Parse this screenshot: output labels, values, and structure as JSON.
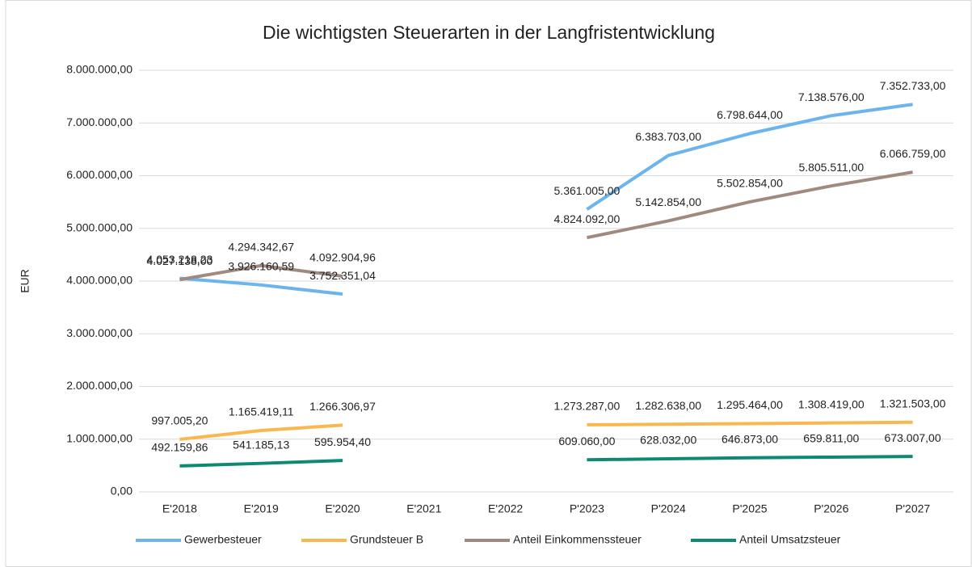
{
  "chart_data": {
    "type": "line",
    "title": "Die wichtigsten Steuerarten in der Langfristentwicklung",
    "y_label": "EUR",
    "categories": [
      "E'2018",
      "E'2019",
      "E'2020",
      "E'2021",
      "E'2022",
      "P'2023",
      "P'2024",
      "P'2025",
      "P'2026",
      "P'2027"
    ],
    "series": [
      {
        "name": "Gewerbesteuer",
        "color": "#6cb4ee",
        "values": [
          4053218.23,
          3926160.59,
          3752351.04,
          null,
          null,
          5361005,
          6383703,
          6798644,
          7138576,
          7352733
        ],
        "value_labels": [
          "4.053.218,23",
          "3.926.160,59",
          "3.752.351,04",
          null,
          null,
          "5.361.005,00",
          "6.383.703,00",
          "6.798.644,00",
          "7.138.576,00",
          "7.352.733,00"
        ]
      },
      {
        "name": "Grundsteuer B",
        "color": "#f9b74e",
        "values": [
          997005.2,
          1165419.11,
          1266306.97,
          null,
          null,
          1273287,
          1282638,
          1295464,
          1308419,
          1321503
        ],
        "value_labels": [
          "997.005,20",
          "1.165.419,11",
          "1.266.306,97",
          null,
          null,
          "1.273.287,00",
          "1.282.638,00",
          "1.295.464,00",
          "1.308.419,00",
          "1.321.503,00"
        ]
      },
      {
        "name": "Anteil Einkommenssteuer",
        "color": "#a08a80",
        "values": [
          4027138.0,
          4294342.67,
          4092904.96,
          null,
          null,
          4824092,
          5142854,
          5502854,
          5805511,
          6066759
        ],
        "value_labels": [
          "4.027.138,00",
          "4.294.342,67",
          "4.092.904,96",
          null,
          null,
          "4.824.092,00",
          "5.142.854,00",
          "5.502.854,00",
          "5.805.511,00",
          "6.066.759,00"
        ]
      },
      {
        "name": "Anteil Umsatzsteuer",
        "color": "#0e8a74",
        "values": [
          492159.86,
          541185.13,
          595954.4,
          null,
          null,
          609060,
          628032,
          646873,
          659811,
          673007
        ],
        "value_labels": [
          "492.159,86",
          "541.185,13",
          "595.954,40",
          null,
          null,
          "609.060,00",
          "628.032,00",
          "646.873,00",
          "659.811,00",
          "673.007,00"
        ]
      }
    ],
    "ylim": [
      0,
      8000000
    ],
    "yticks": [
      {
        "value": 0,
        "label": "0,00"
      },
      {
        "value": 1000000,
        "label": "1.000.000,00"
      },
      {
        "value": 2000000,
        "label": "2.000.000,00"
      },
      {
        "value": 3000000,
        "label": "3.000.000,00"
      },
      {
        "value": 4000000,
        "label": "4.000.000,00"
      },
      {
        "value": 5000000,
        "label": "5.000.000,00"
      },
      {
        "value": 6000000,
        "label": "6.000.000,00"
      },
      {
        "value": 7000000,
        "label": "7.000.000,00"
      },
      {
        "value": 8000000,
        "label": "8.000.000,00"
      }
    ],
    "grid": true,
    "legend": "bottom"
  }
}
